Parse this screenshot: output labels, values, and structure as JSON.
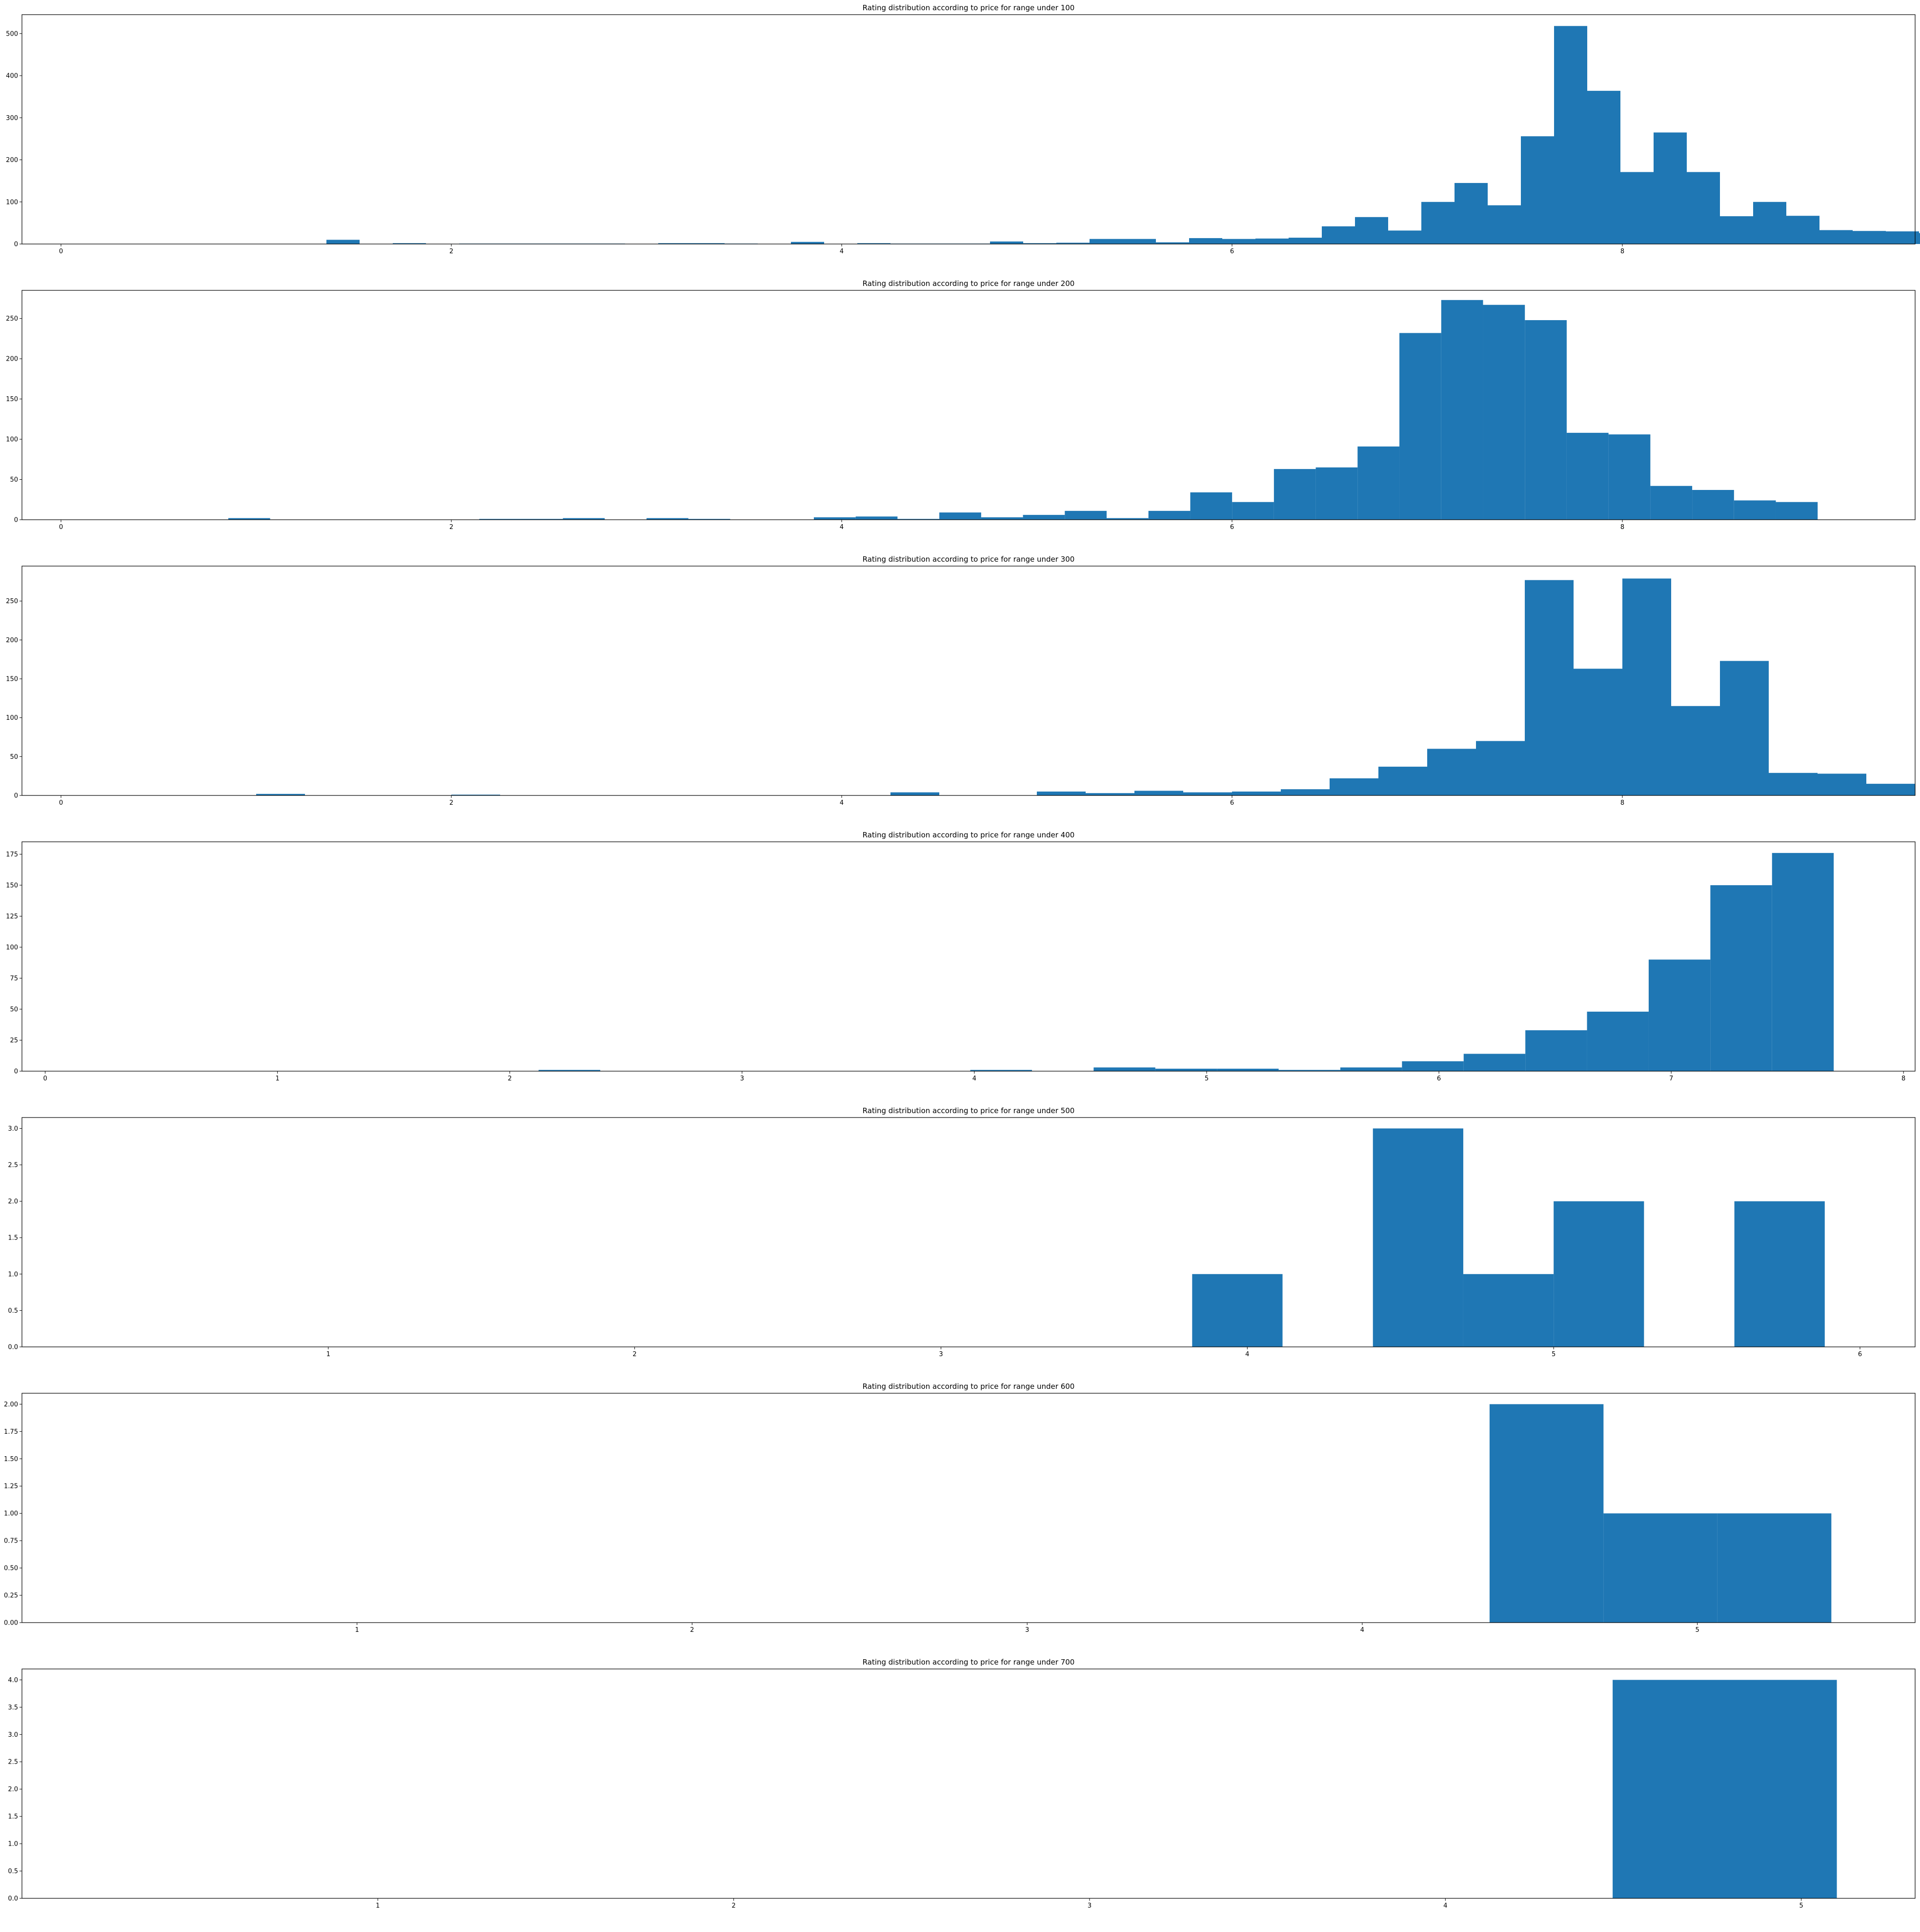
{
  "colors": {
    "bar": "#1f77b4",
    "axis": "#000000",
    "background": "#ffffff"
  },
  "chart_data": [
    {
      "type": "bar",
      "title": "Rating distribution according to price for range under 100",
      "xlabel": "",
      "ylabel": "",
      "xlim": [
        -0.2,
        9.5
      ],
      "ylim": [
        0,
        545
      ],
      "xticks": [
        0,
        2,
        4,
        6,
        8
      ],
      "xtick_labels": [
        "0",
        "2",
        "4",
        "6",
        "8"
      ],
      "yticks": [
        0,
        100,
        200,
        300,
        400,
        500
      ],
      "ytick_labels": [
        "0",
        "100",
        "200",
        "300",
        "400",
        "500"
      ],
      "x_start": 0,
      "bin_width": 0.17,
      "values": [
        0,
        0,
        0,
        0,
        0,
        0,
        0,
        0,
        10,
        0,
        2,
        0,
        1,
        1,
        1,
        1,
        1,
        0,
        2,
        2,
        1,
        0,
        5,
        0,
        2,
        1,
        1,
        1,
        6,
        2,
        3,
        12,
        12,
        4,
        14,
        12,
        13,
        15,
        42,
        64,
        32,
        100,
        145,
        92,
        256,
        518,
        364,
        171,
        265,
        171,
        66,
        100,
        67,
        33,
        31,
        30,
        26
      ]
    },
    {
      "type": "bar",
      "title": "Rating distribution according to price for range under 200",
      "xlabel": "",
      "ylabel": "",
      "xlim": [
        -0.2,
        9.5
      ],
      "ylim": [
        0,
        285
      ],
      "xticks": [
        0,
        2,
        4,
        6,
        8
      ],
      "xtick_labels": [
        "0",
        "2",
        "4",
        "6",
        "8"
      ],
      "yticks": [
        0,
        50,
        100,
        150,
        200,
        250
      ],
      "ytick_labels": [
        "0",
        "50",
        "100",
        "150",
        "200",
        "250"
      ],
      "x_start": 0,
      "bin_width": 0.2143,
      "values": [
        0,
        0,
        0,
        0,
        2,
        0,
        0,
        0,
        0,
        0,
        1,
        1,
        2,
        0,
        2,
        1,
        0,
        0,
        3,
        4,
        1,
        9,
        3,
        6,
        11,
        2,
        11,
        34,
        22,
        63,
        65,
        91,
        232,
        273,
        267,
        248,
        108,
        106,
        42,
        37,
        24,
        22
      ]
    },
    {
      "type": "bar",
      "title": "Rating distribution according to price for range under 300",
      "xlabel": "",
      "ylabel": "",
      "xlim": [
        -0.2,
        9.5
      ],
      "ylim": [
        0,
        295
      ],
      "xticks": [
        0,
        2,
        4,
        6,
        8
      ],
      "xtick_labels": [
        "0",
        "2",
        "4",
        "6",
        "8"
      ],
      "yticks": [
        0,
        50,
        100,
        150,
        200,
        250
      ],
      "ytick_labels": [
        "0",
        "50",
        "100",
        "150",
        "200",
        "250"
      ],
      "x_start": 0,
      "bin_width": 0.25,
      "values": [
        0,
        0,
        0,
        0,
        2,
        0,
        0,
        0,
        1,
        0,
        0,
        0,
        0,
        0,
        0,
        0,
        0,
        4,
        0,
        0,
        5,
        3,
        6,
        4,
        5,
        8,
        22,
        37,
        60,
        70,
        277,
        163,
        279,
        115,
        173,
        29,
        28,
        15
      ]
    },
    {
      "type": "bar",
      "title": "Rating distribution according to price for range under 400",
      "xlabel": "",
      "ylabel": "",
      "xlim": [
        -0.1,
        8.05
      ],
      "ylim": [
        0,
        185
      ],
      "xticks": [
        0,
        1,
        2,
        3,
        4,
        5,
        6,
        7,
        8
      ],
      "xtick_labels": [
        "0",
        "1",
        "2",
        "3",
        "4",
        "5",
        "6",
        "7",
        "8"
      ],
      "yticks": [
        0,
        25,
        50,
        75,
        100,
        125,
        150,
        175
      ],
      "ytick_labels": [
        "0",
        "25",
        "50",
        "75",
        "100",
        "125",
        "150",
        "175"
      ],
      "x_start": 0,
      "bin_width": 0.2655,
      "values": [
        0,
        0,
        0,
        0,
        0,
        0,
        0,
        0,
        1,
        0,
        0,
        0,
        0,
        0,
        0,
        1,
        0,
        3,
        2,
        2,
        1,
        3,
        8,
        14,
        33,
        48,
        90,
        150,
        176
      ]
    },
    {
      "type": "bar",
      "title": "Rating distribution according to price for range under 500",
      "xlabel": "",
      "ylabel": "",
      "xlim": [
        0.0,
        6.18
      ],
      "ylim": [
        0,
        3.15
      ],
      "xticks": [
        1,
        2,
        3,
        4,
        5,
        6
      ],
      "xtick_labels": [
        "1",
        "2",
        "3",
        "4",
        "5",
        "6"
      ],
      "yticks": [
        0,
        0.5,
        1.0,
        1.5,
        2.0,
        2.5,
        3.0
      ],
      "ytick_labels": [
        "0.0",
        "0.5",
        "1.0",
        "1.5",
        "2.0",
        "2.5",
        "3.0"
      ],
      "x_start": 3.82,
      "bin_width": 0.295,
      "values": [
        1,
        0,
        3,
        1,
        2,
        0,
        2
      ]
    },
    {
      "type": "bar",
      "title": "Rating distribution according to price for range under 600",
      "xlabel": "",
      "ylabel": "",
      "xlim": [
        0.0,
        5.65
      ],
      "ylim": [
        0,
        2.1
      ],
      "xticks": [
        1,
        2,
        3,
        4,
        5
      ],
      "xtick_labels": [
        "1",
        "2",
        "3",
        "4",
        "5"
      ],
      "yticks": [
        0,
        0.25,
        0.5,
        0.75,
        1.0,
        1.25,
        1.5,
        1.75,
        2.0
      ],
      "ytick_labels": [
        "0.00",
        "0.25",
        "0.50",
        "0.75",
        "1.00",
        "1.25",
        "1.50",
        "1.75",
        "2.00"
      ],
      "x_start": 4.38,
      "bin_width": 0.34,
      "values": [
        2,
        1,
        1
      ]
    },
    {
      "type": "bar",
      "title": "Rating distribution according to price for range under 700",
      "xlabel": "",
      "ylabel": "",
      "xlim": [
        0.0,
        5.32
      ],
      "ylim": [
        0,
        4.2
      ],
      "xticks": [
        1,
        2,
        3,
        4,
        5
      ],
      "xtick_labels": [
        "1",
        "2",
        "3",
        "4",
        "5"
      ],
      "yticks": [
        0,
        0.5,
        1.0,
        1.5,
        2.0,
        2.5,
        3.0,
        3.5,
        4.0
      ],
      "ytick_labels": [
        "0.0",
        "0.5",
        "1.0",
        "1.5",
        "2.0",
        "2.5",
        "3.0",
        "3.5",
        "4.0"
      ],
      "x_start": 4.47,
      "bin_width": 0.63,
      "values": [
        4
      ]
    }
  ]
}
